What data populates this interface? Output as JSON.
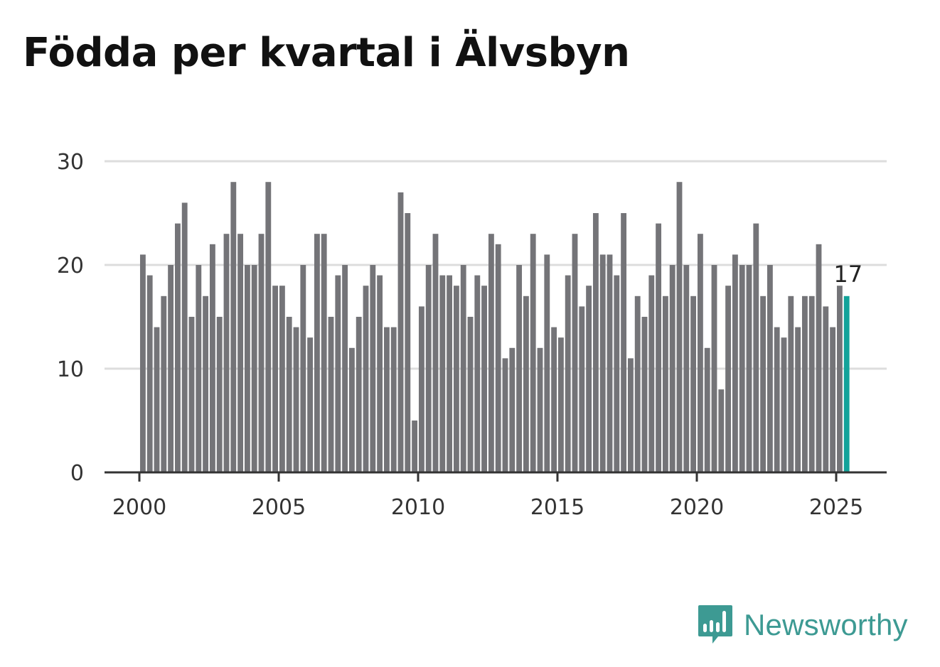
{
  "title": "Födda per kvartal i Älvsbyn",
  "brand": {
    "name": "Newsworthy",
    "icon": "newsworthy-logo-icon",
    "color": "#3d9a93"
  },
  "colors": {
    "bars": "#747478",
    "highlight": "#12a39a",
    "grid": "#dddddd",
    "axis": "#333333"
  },
  "chart_data": {
    "type": "bar",
    "title": "Födda per kvartal i Älvsbyn",
    "xlabel": "",
    "ylabel": "",
    "ylim": [
      0,
      30
    ],
    "yticks": [
      0,
      10,
      20,
      30
    ],
    "xticks": [
      "2000",
      "2005",
      "2010",
      "2015",
      "2020",
      "2025"
    ],
    "grid": true,
    "start": "2000 Q1",
    "end": "2025 Q2",
    "highlight_last": true,
    "last_label": "17",
    "values": [
      21,
      19,
      14,
      17,
      20,
      24,
      26,
      15,
      20,
      17,
      22,
      15,
      23,
      28,
      23,
      20,
      20,
      23,
      28,
      18,
      18,
      15,
      14,
      20,
      13,
      23,
      23,
      15,
      19,
      20,
      12,
      15,
      18,
      20,
      19,
      14,
      14,
      27,
      25,
      5,
      16,
      20,
      23,
      19,
      19,
      18,
      20,
      15,
      19,
      18,
      23,
      22,
      11,
      12,
      20,
      17,
      23,
      12,
      21,
      14,
      13,
      19,
      23,
      16,
      18,
      25,
      21,
      21,
      19,
      25,
      11,
      17,
      15,
      19,
      24,
      17,
      20,
      28,
      20,
      17,
      23,
      12,
      20,
      8,
      18,
      21,
      20,
      20,
      24,
      17,
      20,
      14,
      13,
      17,
      14,
      17,
      17,
      22,
      16,
      14,
      18,
      17
    ]
  }
}
